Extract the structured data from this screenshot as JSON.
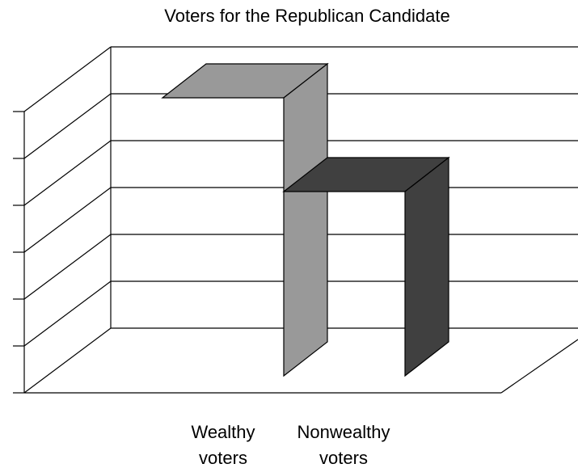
{
  "chart_data": {
    "type": "bar",
    "title": "Voters for the Republican Candidate",
    "categories": [
      "Wealthy voters",
      "Nonwealthy voters"
    ],
    "category_lines": [
      [
        "Wealthy",
        "voters"
      ],
      [
        "Nonwealthy",
        "voters"
      ]
    ],
    "values": [
      6.0,
      4.0
    ],
    "ylim": [
      0,
      6
    ],
    "grid": true,
    "style": "3d-column",
    "colors": [
      "#999999",
      "#404040"
    ],
    "xlabel": "",
    "ylabel": ""
  }
}
